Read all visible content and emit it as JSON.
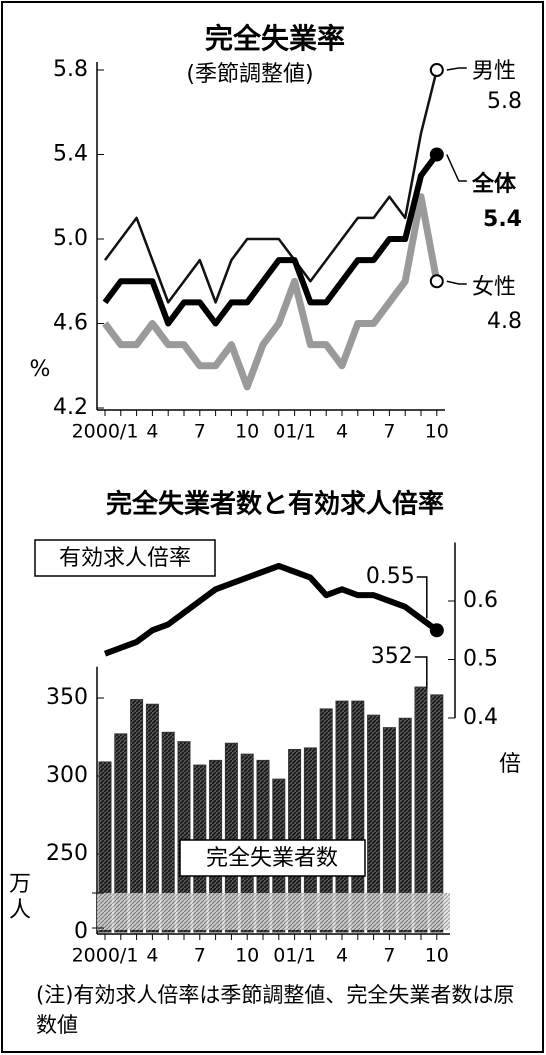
{
  "chart_data": [
    {
      "type": "line",
      "title": "完全失業率",
      "subtitle": "(季節調整値)",
      "ylabel": "%",
      "categories": [
        "2000/1",
        null,
        null,
        "4",
        null,
        null,
        "7",
        null,
        null,
        "10",
        null,
        null,
        "01/1",
        null,
        null,
        "4",
        null,
        null,
        "7",
        null,
        null,
        "10"
      ],
      "ylim": [
        4.2,
        5.8
      ],
      "yticks": [
        4.2,
        4.6,
        {
          "value": 5,
          "label": "5.0"
        },
        5.4,
        5.8
      ],
      "series": [
        {
          "name": "男性",
          "color": "#111111",
          "values": [
            4.9,
            5.0,
            5.1,
            4.9,
            4.7,
            4.8,
            4.9,
            4.7,
            4.9,
            5.0,
            5.0,
            5.0,
            4.9,
            4.8,
            4.9,
            5.0,
            5.1,
            5.1,
            5.2,
            5.1,
            5.5,
            5.8
          ]
        },
        {
          "name": "全体",
          "color": "#000000",
          "values": [
            4.7,
            4.8,
            4.8,
            4.8,
            4.6,
            4.7,
            4.7,
            4.6,
            4.7,
            4.7,
            4.8,
            4.9,
            4.9,
            4.7,
            4.7,
            4.8,
            4.9,
            4.9,
            5.0,
            5.0,
            5.3,
            5.4
          ]
        },
        {
          "name": "女性",
          "color": "#999999",
          "values": [
            4.6,
            4.5,
            4.5,
            4.6,
            4.5,
            4.5,
            4.4,
            4.4,
            4.5,
            4.3,
            4.5,
            4.6,
            4.8,
            4.5,
            4.5,
            4.4,
            4.6,
            4.6,
            4.7,
            4.8,
            5.2,
            4.8
          ]
        }
      ]
    },
    {
      "type": "bar",
      "title": "完全失業者数と有効求人倍率",
      "ylabel": "万人",
      "y2label": "倍",
      "categories": [
        "2000/1",
        null,
        null,
        "4",
        null,
        null,
        "7",
        null,
        null,
        "10",
        null,
        null,
        "01/1",
        null,
        null,
        "4",
        null,
        null,
        "7",
        null,
        null,
        "10"
      ],
      "ylim": [
        0,
        370
      ],
      "ybreak": [
        0,
        225
      ],
      "yticks": [
        0,
        250,
        300,
        350
      ],
      "y2lim": [
        0.4,
        0.7
      ],
      "y2ticks": [
        0.4,
        0.5,
        0.6
      ],
      "series": [
        {
          "name": "完全失業者数",
          "color": "#333333",
          "values": [
            309,
            327,
            349,
            346,
            328,
            322,
            307,
            310,
            321,
            314,
            310,
            298,
            317,
            318,
            343,
            348,
            348,
            339,
            331,
            337,
            357,
            352
          ]
        },
        {
          "name": "有効求人倍率",
          "type": "line",
          "axis": "y2",
          "color": "#000000",
          "values": [
            0.51,
            0.52,
            0.53,
            0.55,
            0.56,
            0.58,
            0.6,
            0.62,
            0.63,
            0.64,
            0.65,
            0.66,
            0.65,
            0.64,
            0.61,
            0.62,
            0.61,
            0.61,
            0.6,
            0.59,
            0.57,
            0.55
          ]
        }
      ],
      "note": "(注)有効求人倍率は季節調整値、完全失業者数は原数値"
    }
  ]
}
